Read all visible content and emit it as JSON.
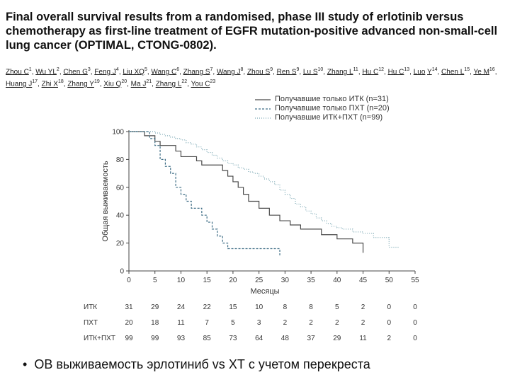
{
  "title": "Final overall survival results from a randomised, phase III study of erlotinib versus chemotherapy as first-line treatment of EGFR mutation-positive advanced non-small-cell lung cancer (OPTIMAL, CTONG-0802).",
  "authors": [
    {
      "name": "Zhou C",
      "sup": "1"
    },
    {
      "name": "Wu YL",
      "sup": "2"
    },
    {
      "name": "Chen G",
      "sup": "3"
    },
    {
      "name": "Feng J",
      "sup": "4"
    },
    {
      "name": "Liu XQ",
      "sup": "5"
    },
    {
      "name": "Wang C",
      "sup": "6"
    },
    {
      "name": "Zhang S",
      "sup": "7"
    },
    {
      "name": "Wang J",
      "sup": "8"
    },
    {
      "name": "Zhou S",
      "sup": "9"
    },
    {
      "name": "Ren S",
      "sup": "9"
    },
    {
      "name": "Lu S",
      "sup": "10"
    },
    {
      "name": "Zhang L",
      "sup": "11"
    },
    {
      "name": "Hu C",
      "sup": "12"
    },
    {
      "name": "Hu C",
      "sup": "13"
    },
    {
      "name": "Luo",
      "sup": ""
    },
    {
      "name": "Y",
      "sup": "14"
    },
    {
      "name": "Chen L",
      "sup": "15"
    },
    {
      "name": "Ye M",
      "sup": "16"
    },
    {
      "name": "Huang J",
      "sup": "17"
    },
    {
      "name": "Zhi X",
      "sup": "18"
    },
    {
      "name": "Zhang Y",
      "sup": "19"
    },
    {
      "name": "Xiu Q",
      "sup": "20"
    },
    {
      "name": "Ma J",
      "sup": "21"
    },
    {
      "name": "Zhang L",
      "sup": "22"
    },
    {
      "name": "You C",
      "sup": "23"
    }
  ],
  "bullet": "ОВ выживаемость эрлотиниб vs ХТ с учетом перекреста",
  "chart_data": {
    "type": "line",
    "xlabel": "Месяцы",
    "ylabel": "Общая выживаемость",
    "xlim": [
      0,
      55
    ],
    "ylim": [
      0,
      100
    ],
    "xticks": [
      0,
      5,
      10,
      15,
      20,
      25,
      30,
      35,
      40,
      45,
      50,
      55
    ],
    "yticks": [
      0,
      20,
      40,
      60,
      80,
      100
    ],
    "grid": false,
    "legend_position": "top-right",
    "series": [
      {
        "name": "Получавшие только ИТК (n=31)",
        "color": "#4a4a4a",
        "dash": "",
        "x": [
          0,
          2,
          3,
          4,
          5,
          6,
          8,
          9,
          10,
          12,
          13,
          14,
          16,
          18,
          19,
          20,
          21,
          22,
          23,
          25,
          27,
          29,
          31,
          33,
          37,
          40,
          43,
          45
        ],
        "y": [
          100,
          100,
          97,
          97,
          93,
          90,
          90,
          86,
          82,
          82,
          79,
          76,
          76,
          72,
          68,
          64,
          60,
          55,
          50,
          45,
          40,
          36,
          33,
          30,
          26,
          23,
          20,
          13
        ]
      },
      {
        "name": "Получавшие только ПХТ (n=20)",
        "color": "#3f6e86",
        "dash": "3,2",
        "x": [
          0,
          3,
          4,
          5,
          6,
          7,
          8,
          9,
          10,
          11,
          12,
          14,
          15,
          16,
          17,
          18,
          19,
          22,
          23,
          24,
          25,
          28,
          29
        ],
        "y": [
          100,
          100,
          95,
          90,
          80,
          75,
          70,
          60,
          55,
          50,
          45,
          40,
          35,
          30,
          25,
          20,
          16,
          16,
          16,
          16,
          16,
          16,
          11
        ]
      },
      {
        "name": "Получавшие ИТК+ПХТ (n=99)",
        "color": "#7aa7b3",
        "dash": "1,2",
        "x": [
          0,
          3,
          5,
          6,
          7,
          8,
          9,
          10,
          11,
          12,
          13,
          14,
          15,
          16,
          17,
          18,
          19,
          20,
          21,
          22,
          23,
          24,
          25,
          26,
          27,
          28,
          29,
          30,
          31,
          32,
          33,
          34,
          35,
          36,
          37,
          38,
          39,
          40,
          41,
          42,
          43,
          44,
          45,
          46,
          47,
          48,
          49,
          50,
          51,
          52
        ],
        "y": [
          100,
          100,
          99,
          98,
          97,
          96,
          95,
          94,
          92,
          91,
          89,
          87,
          85,
          83,
          81,
          79,
          77,
          76,
          74,
          73,
          71,
          70,
          68,
          66,
          64,
          62,
          58,
          55,
          52,
          48,
          46,
          43,
          41,
          38,
          36,
          34,
          32,
          31,
          30,
          30,
          28,
          28,
          27,
          27,
          24,
          24,
          24,
          17,
          17,
          17
        ]
      }
    ],
    "risk_table": {
      "times": [
        0,
        5,
        10,
        15,
        20,
        25,
        30,
        35,
        40,
        45,
        50,
        55
      ],
      "rows": [
        {
          "label": "ИТК",
          "values": [
            "31",
            "29",
            "24",
            "22",
            "15",
            "10",
            "8",
            "8",
            "5",
            "2",
            "0",
            "0"
          ]
        },
        {
          "label": "ПХТ",
          "values": [
            "20",
            "18",
            "11",
            "7",
            "5",
            "3",
            "2",
            "2",
            "2",
            "2",
            "0",
            "0"
          ]
        },
        {
          "label": "ИТК+ПХТ",
          "values": [
            "99",
            "99",
            "93",
            "85",
            "73",
            "64",
            "48",
            "37",
            "29",
            "11",
            "2",
            "0"
          ]
        }
      ]
    }
  }
}
